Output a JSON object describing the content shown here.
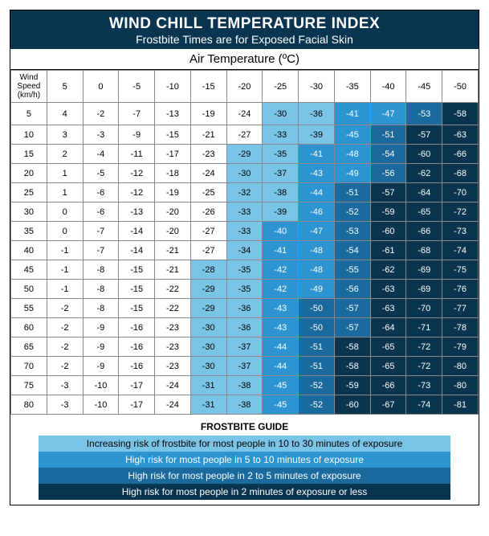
{
  "title": "WIND CHILL TEMPERATURE INDEX",
  "subtitle": "Frostbite Times are for Exposed Facial Skin",
  "axis_label": "Air Temperature (ºC)",
  "corner_label": "Wind Speed (km/h)",
  "guide_title": "FROSTBITE GUIDE",
  "colors": {
    "c0": "#ffffff",
    "c1": "#7ac4e8",
    "c2": "#2b94d1",
    "c3": "#1a6a9e",
    "c4": "#0a3550",
    "border": "#888888",
    "header_bg": "#0a3550",
    "header_text": "#ffffff"
  },
  "font": {
    "family": "Arial, Helvetica, sans-serif",
    "title_size_pt": 14,
    "cell_size_pt": 8
  },
  "air_temps": [
    5,
    0,
    -5,
    -10,
    -15,
    -20,
    -25,
    -30,
    -35,
    -40,
    -45,
    -50
  ],
  "wind_speeds": [
    5,
    10,
    15,
    20,
    25,
    30,
    35,
    40,
    45,
    50,
    55,
    60,
    65,
    70,
    75,
    80
  ],
  "rows": [
    {
      "ws": 5,
      "cells": [
        {
          "v": 4,
          "c": 0
        },
        {
          "v": -2,
          "c": 0
        },
        {
          "v": -7,
          "c": 0
        },
        {
          "v": -13,
          "c": 0
        },
        {
          "v": -19,
          "c": 0
        },
        {
          "v": -24,
          "c": 0
        },
        {
          "v": -30,
          "c": 1
        },
        {
          "v": -36,
          "c": 1
        },
        {
          "v": -41,
          "c": 2
        },
        {
          "v": -47,
          "c": 2
        },
        {
          "v": -53,
          "c": 3
        },
        {
          "v": -58,
          "c": 4
        }
      ]
    },
    {
      "ws": 10,
      "cells": [
        {
          "v": 3,
          "c": 0
        },
        {
          "v": -3,
          "c": 0
        },
        {
          "v": -9,
          "c": 0
        },
        {
          "v": -15,
          "c": 0
        },
        {
          "v": -21,
          "c": 0
        },
        {
          "v": -27,
          "c": 0
        },
        {
          "v": -33,
          "c": 1
        },
        {
          "v": -39,
          "c": 1
        },
        {
          "v": -45,
          "c": 2
        },
        {
          "v": -51,
          "c": 3
        },
        {
          "v": -57,
          "c": 4
        },
        {
          "v": -63,
          "c": 4
        }
      ]
    },
    {
      "ws": 15,
      "cells": [
        {
          "v": 2,
          "c": 0
        },
        {
          "v": -4,
          "c": 0
        },
        {
          "v": -11,
          "c": 0
        },
        {
          "v": -17,
          "c": 0
        },
        {
          "v": -23,
          "c": 0
        },
        {
          "v": -29,
          "c": 1
        },
        {
          "v": -35,
          "c": 1
        },
        {
          "v": -41,
          "c": 2
        },
        {
          "v": -48,
          "c": 2
        },
        {
          "v": -54,
          "c": 3
        },
        {
          "v": -60,
          "c": 4
        },
        {
          "v": -66,
          "c": 4
        }
      ]
    },
    {
      "ws": 20,
      "cells": [
        {
          "v": 1,
          "c": 0
        },
        {
          "v": -5,
          "c": 0
        },
        {
          "v": -12,
          "c": 0
        },
        {
          "v": -18,
          "c": 0
        },
        {
          "v": -24,
          "c": 0
        },
        {
          "v": -30,
          "c": 1
        },
        {
          "v": -37,
          "c": 1
        },
        {
          "v": -43,
          "c": 2
        },
        {
          "v": -49,
          "c": 2
        },
        {
          "v": -56,
          "c": 3
        },
        {
          "v": -62,
          "c": 4
        },
        {
          "v": -68,
          "c": 4
        }
      ]
    },
    {
      "ws": 25,
      "cells": [
        {
          "v": 1,
          "c": 0
        },
        {
          "v": -6,
          "c": 0
        },
        {
          "v": -12,
          "c": 0
        },
        {
          "v": -19,
          "c": 0
        },
        {
          "v": -25,
          "c": 0
        },
        {
          "v": -32,
          "c": 1
        },
        {
          "v": -38,
          "c": 1
        },
        {
          "v": -44,
          "c": 2
        },
        {
          "v": -51,
          "c": 3
        },
        {
          "v": -57,
          "c": 4
        },
        {
          "v": -64,
          "c": 4
        },
        {
          "v": -70,
          "c": 4
        }
      ]
    },
    {
      "ws": 30,
      "cells": [
        {
          "v": 0,
          "c": 0
        },
        {
          "v": -6,
          "c": 0
        },
        {
          "v": -13,
          "c": 0
        },
        {
          "v": -20,
          "c": 0
        },
        {
          "v": -26,
          "c": 0
        },
        {
          "v": -33,
          "c": 1
        },
        {
          "v": -39,
          "c": 1
        },
        {
          "v": -46,
          "c": 2
        },
        {
          "v": -52,
          "c": 3
        },
        {
          "v": -59,
          "c": 4
        },
        {
          "v": -65,
          "c": 4
        },
        {
          "v": -72,
          "c": 4
        }
      ]
    },
    {
      "ws": 35,
      "cells": [
        {
          "v": 0,
          "c": 0
        },
        {
          "v": -7,
          "c": 0
        },
        {
          "v": -14,
          "c": 0
        },
        {
          "v": -20,
          "c": 0
        },
        {
          "v": -27,
          "c": 0
        },
        {
          "v": -33,
          "c": 1
        },
        {
          "v": -40,
          "c": 2
        },
        {
          "v": -47,
          "c": 2
        },
        {
          "v": -53,
          "c": 3
        },
        {
          "v": -60,
          "c": 4
        },
        {
          "v": -66,
          "c": 4
        },
        {
          "v": -73,
          "c": 4
        }
      ]
    },
    {
      "ws": 40,
      "cells": [
        {
          "v": -1,
          "c": 0
        },
        {
          "v": -7,
          "c": 0
        },
        {
          "v": -14,
          "c": 0
        },
        {
          "v": -21,
          "c": 0
        },
        {
          "v": -27,
          "c": 0
        },
        {
          "v": -34,
          "c": 1
        },
        {
          "v": -41,
          "c": 2
        },
        {
          "v": -48,
          "c": 2
        },
        {
          "v": -54,
          "c": 3
        },
        {
          "v": -61,
          "c": 4
        },
        {
          "v": -68,
          "c": 4
        },
        {
          "v": -74,
          "c": 4
        }
      ]
    },
    {
      "ws": 45,
      "cells": [
        {
          "v": -1,
          "c": 0
        },
        {
          "v": -8,
          "c": 0
        },
        {
          "v": -15,
          "c": 0
        },
        {
          "v": -21,
          "c": 0
        },
        {
          "v": -28,
          "c": 1
        },
        {
          "v": -35,
          "c": 1
        },
        {
          "v": -42,
          "c": 2
        },
        {
          "v": -48,
          "c": 2
        },
        {
          "v": -55,
          "c": 3
        },
        {
          "v": -62,
          "c": 4
        },
        {
          "v": -69,
          "c": 4
        },
        {
          "v": -75,
          "c": 4
        }
      ]
    },
    {
      "ws": 50,
      "cells": [
        {
          "v": -1,
          "c": 0
        },
        {
          "v": -8,
          "c": 0
        },
        {
          "v": -15,
          "c": 0
        },
        {
          "v": -22,
          "c": 0
        },
        {
          "v": -29,
          "c": 1
        },
        {
          "v": -35,
          "c": 1
        },
        {
          "v": -42,
          "c": 2
        },
        {
          "v": -49,
          "c": 2
        },
        {
          "v": -56,
          "c": 3
        },
        {
          "v": -63,
          "c": 4
        },
        {
          "v": -69,
          "c": 4
        },
        {
          "v": -76,
          "c": 4
        }
      ]
    },
    {
      "ws": 55,
      "cells": [
        {
          "v": -2,
          "c": 0
        },
        {
          "v": -8,
          "c": 0
        },
        {
          "v": -15,
          "c": 0
        },
        {
          "v": -22,
          "c": 0
        },
        {
          "v": -29,
          "c": 1
        },
        {
          "v": -36,
          "c": 1
        },
        {
          "v": -43,
          "c": 2
        },
        {
          "v": -50,
          "c": 3
        },
        {
          "v": -57,
          "c": 3
        },
        {
          "v": -63,
          "c": 4
        },
        {
          "v": -70,
          "c": 4
        },
        {
          "v": -77,
          "c": 4
        }
      ]
    },
    {
      "ws": 60,
      "cells": [
        {
          "v": -2,
          "c": 0
        },
        {
          "v": -9,
          "c": 0
        },
        {
          "v": -16,
          "c": 0
        },
        {
          "v": -23,
          "c": 0
        },
        {
          "v": -30,
          "c": 1
        },
        {
          "v": -36,
          "c": 1
        },
        {
          "v": -43,
          "c": 2
        },
        {
          "v": -50,
          "c": 3
        },
        {
          "v": -57,
          "c": 3
        },
        {
          "v": -64,
          "c": 4
        },
        {
          "v": -71,
          "c": 4
        },
        {
          "v": -78,
          "c": 4
        }
      ]
    },
    {
      "ws": 65,
      "cells": [
        {
          "v": -2,
          "c": 0
        },
        {
          "v": -9,
          "c": 0
        },
        {
          "v": -16,
          "c": 0
        },
        {
          "v": -23,
          "c": 0
        },
        {
          "v": -30,
          "c": 1
        },
        {
          "v": -37,
          "c": 1
        },
        {
          "v": -44,
          "c": 2
        },
        {
          "v": -51,
          "c": 3
        },
        {
          "v": -58,
          "c": 4
        },
        {
          "v": -65,
          "c": 4
        },
        {
          "v": -72,
          "c": 4
        },
        {
          "v": -79,
          "c": 4
        }
      ]
    },
    {
      "ws": 70,
      "cells": [
        {
          "v": -2,
          "c": 0
        },
        {
          "v": -9,
          "c": 0
        },
        {
          "v": -16,
          "c": 0
        },
        {
          "v": -23,
          "c": 0
        },
        {
          "v": -30,
          "c": 1
        },
        {
          "v": -37,
          "c": 1
        },
        {
          "v": -44,
          "c": 2
        },
        {
          "v": -51,
          "c": 3
        },
        {
          "v": -58,
          "c": 4
        },
        {
          "v": -65,
          "c": 4
        },
        {
          "v": -72,
          "c": 4
        },
        {
          "v": -80,
          "c": 4
        }
      ]
    },
    {
      "ws": 75,
      "cells": [
        {
          "v": -3,
          "c": 0
        },
        {
          "v": -10,
          "c": 0
        },
        {
          "v": -17,
          "c": 0
        },
        {
          "v": -24,
          "c": 0
        },
        {
          "v": -31,
          "c": 1
        },
        {
          "v": -38,
          "c": 1
        },
        {
          "v": -45,
          "c": 2
        },
        {
          "v": -52,
          "c": 3
        },
        {
          "v": -59,
          "c": 4
        },
        {
          "v": -66,
          "c": 4
        },
        {
          "v": -73,
          "c": 4
        },
        {
          "v": -80,
          "c": 4
        }
      ]
    },
    {
      "ws": 80,
      "cells": [
        {
          "v": -3,
          "c": 0
        },
        {
          "v": -10,
          "c": 0
        },
        {
          "v": -17,
          "c": 0
        },
        {
          "v": -24,
          "c": 0
        },
        {
          "v": -31,
          "c": 1
        },
        {
          "v": -38,
          "c": 1
        },
        {
          "v": -45,
          "c": 2
        },
        {
          "v": -52,
          "c": 3
        },
        {
          "v": -60,
          "c": 4
        },
        {
          "v": -67,
          "c": 4
        },
        {
          "v": -74,
          "c": 4
        },
        {
          "v": -81,
          "c": 4
        }
      ]
    }
  ],
  "legend": [
    {
      "text": "Increasing risk of  frostbite for most people in 10 to 30 minutes of exposure",
      "cls": "lr1",
      "color": "#7ac4e8"
    },
    {
      "text": "High risk for most people in 5 to 10 minutes of exposure",
      "cls": "lr2",
      "color": "#2b94d1"
    },
    {
      "text": "High risk for most people in 2 to 5 minutes of exposure",
      "cls": "lr3",
      "color": "#1a6a9e"
    },
    {
      "text": "High risk for most people in 2 minutes of exposure or less",
      "cls": "lr4",
      "color": "#0a3550"
    }
  ]
}
